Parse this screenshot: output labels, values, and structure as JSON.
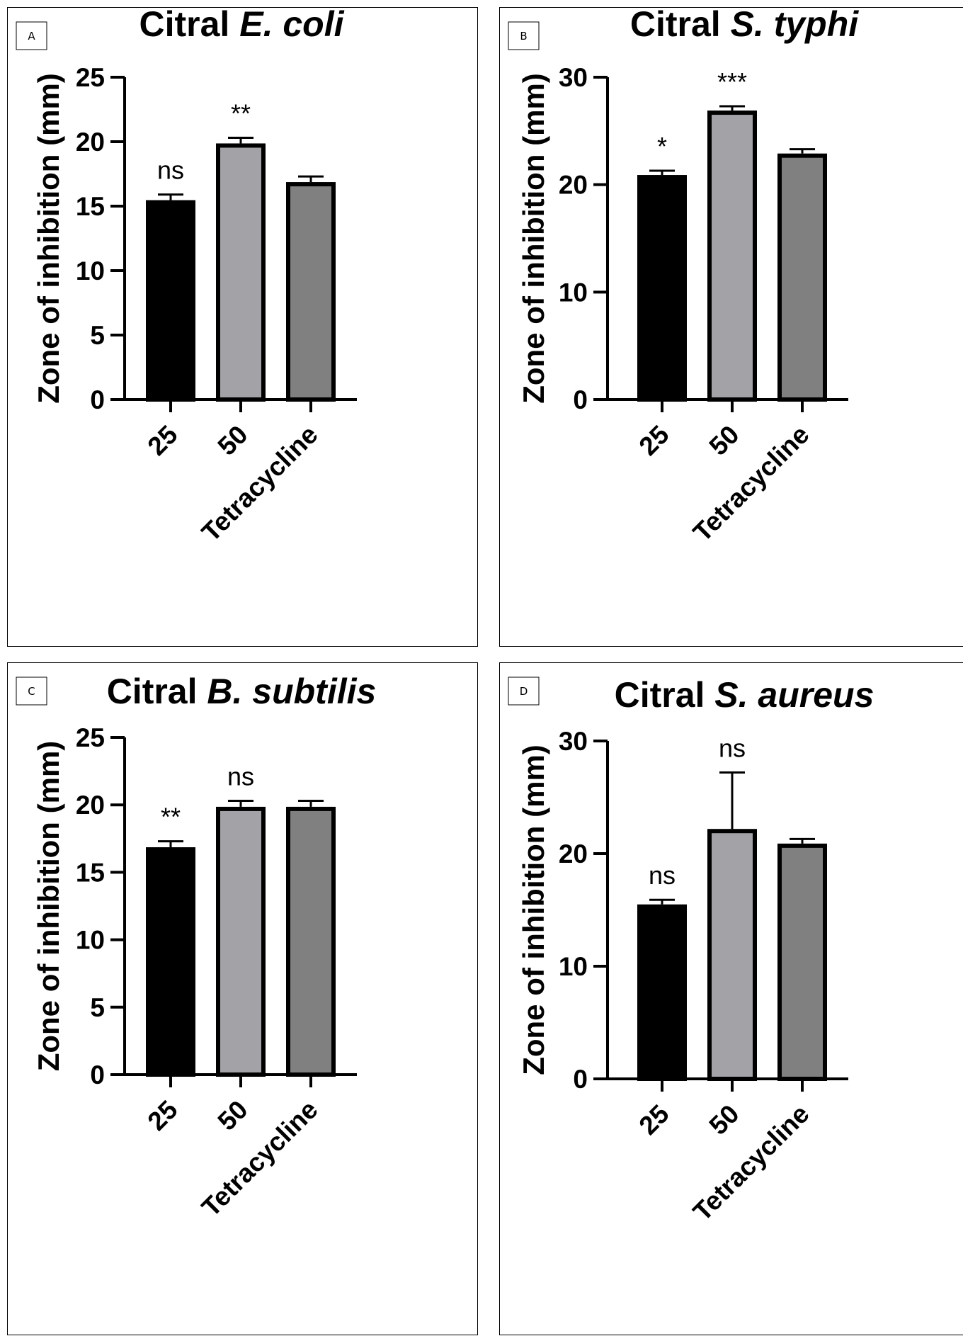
{
  "chart_data": [
    {
      "panel_label": "A",
      "type": "bar",
      "title": "Citral",
      "title_italic": "E. coli",
      "ylabel": "Zone of inhibition (mm)",
      "categories": [
        "25",
        "50",
        "Tetracycline"
      ],
      "values": [
        15.3,
        19.7,
        16.7
      ],
      "errors": [
        0.6,
        0.6,
        0.6
      ],
      "significance": [
        "ns",
        "**",
        ""
      ],
      "ylim": [
        0,
        25
      ],
      "yticks": [
        0,
        5,
        10,
        15,
        20,
        25
      ],
      "colors": [
        "#000000",
        "#a2a2a7",
        "#808080"
      ],
      "grid": false
    },
    {
      "panel_label": "B",
      "type": "bar",
      "title": "Citral",
      "title_italic": "S. typhi",
      "ylabel": "Zone of inhibition (mm)",
      "categories": [
        "25",
        "50",
        "Tetracycline"
      ],
      "values": [
        20.7,
        26.7,
        22.7
      ],
      "errors": [
        0.6,
        0.6,
        0.6
      ],
      "significance": [
        "*",
        "***",
        ""
      ],
      "ylim": [
        0,
        30
      ],
      "yticks": [
        0,
        10,
        20,
        30
      ],
      "colors": [
        "#000000",
        "#a2a2a7",
        "#808080"
      ],
      "grid": false
    },
    {
      "panel_label": "C",
      "type": "bar",
      "title": "Citral",
      "title_italic": "B. subtilis",
      "ylabel": "Zone of inhibition (mm)",
      "categories": [
        "25",
        "50",
        "Tetracycline"
      ],
      "values": [
        16.7,
        19.7,
        19.7
      ],
      "errors": [
        0.6,
        0.6,
        0.6
      ],
      "significance": [
        "**",
        "ns",
        ""
      ],
      "ylim": [
        0,
        25
      ],
      "yticks": [
        0,
        5,
        10,
        15,
        20,
        25
      ],
      "colors": [
        "#000000",
        "#a2a2a7",
        "#808080"
      ],
      "grid": false
    },
    {
      "panel_label": "D",
      "type": "bar",
      "title": "Citral",
      "title_italic": "S. aureus",
      "ylabel": "Zone of inhibition (mm)",
      "categories": [
        "25",
        "50",
        "Tetracycline"
      ],
      "values": [
        15.3,
        22.0,
        20.7
      ],
      "errors": [
        0.6,
        5.2,
        0.6
      ],
      "significance": [
        "ns",
        "ns",
        ""
      ],
      "ylim": [
        0,
        30
      ],
      "yticks": [
        0,
        10,
        20,
        30
      ],
      "colors": [
        "#000000",
        "#a2a2a7",
        "#808080"
      ],
      "grid": false
    }
  ]
}
